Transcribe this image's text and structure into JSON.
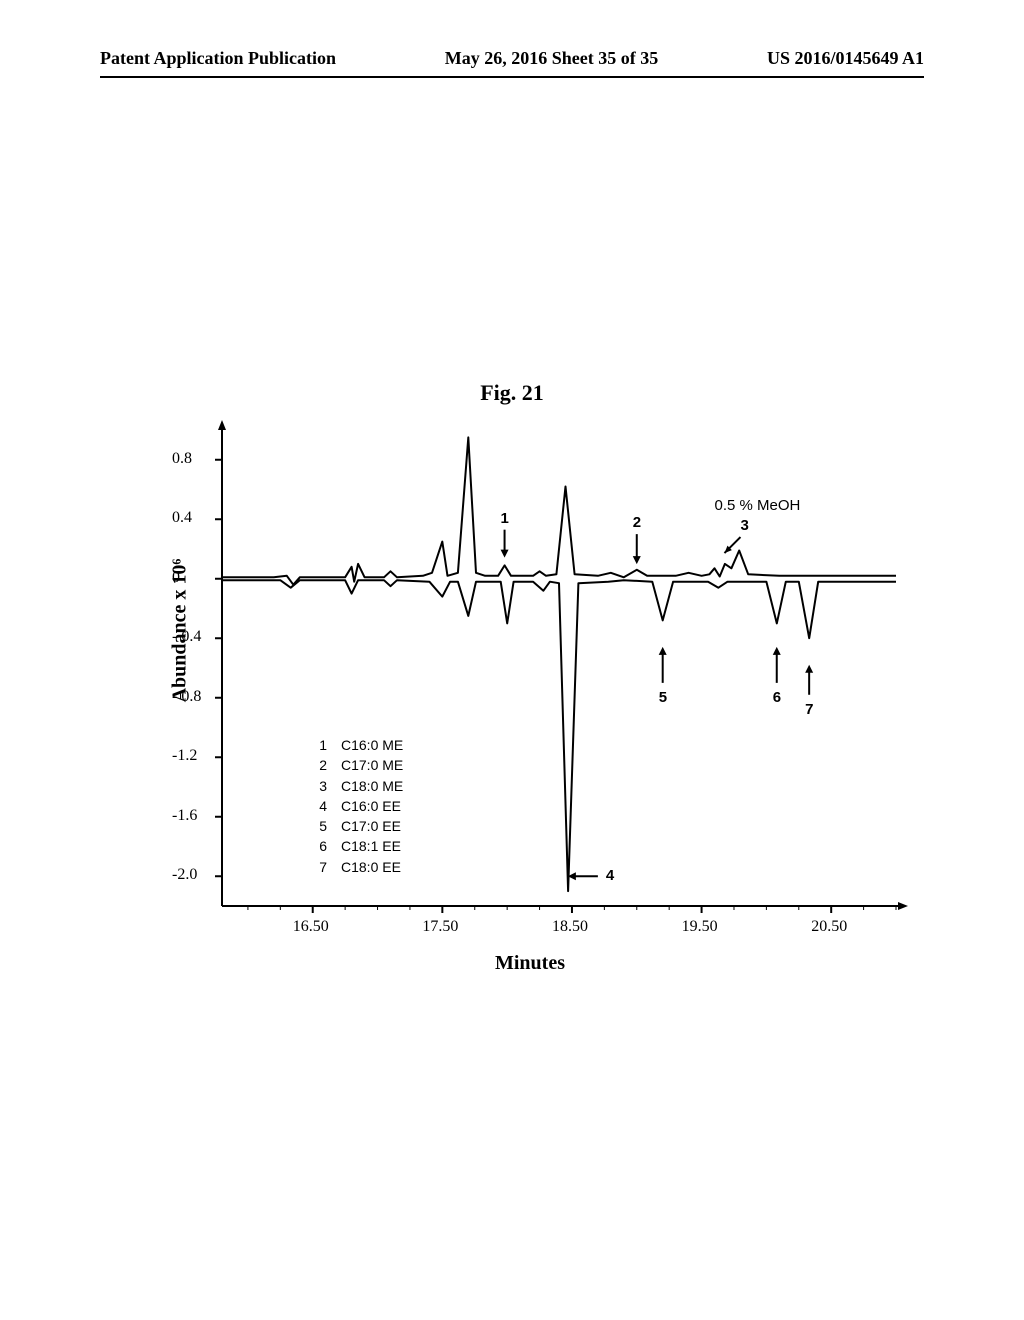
{
  "header": {
    "left": "Patent Application Publication",
    "center": "May 26, 2016  Sheet 35 of 35",
    "right": "US 2016/0145649 A1"
  },
  "figure": {
    "title": "Fig. 21",
    "y_axis_label": "Abundance x 10⁶",
    "x_axis_label": "Minutes",
    "condition_label": "0.5 % MeOH",
    "y_ticks": [
      "0.8",
      "0.4",
      "0",
      "- 0.4",
      "- 0.8",
      "-1.2",
      "-1.6",
      "-2.0"
    ],
    "y_tick_values": [
      0.8,
      0.4,
      0.0,
      -0.4,
      -0.8,
      -1.2,
      -1.6,
      -2.0
    ],
    "x_ticks": [
      "16.50",
      "17.50",
      "18.50",
      "19.50",
      "20.50"
    ],
    "x_tick_values": [
      16.5,
      17.5,
      18.5,
      19.5,
      20.5
    ],
    "xlim": [
      15.8,
      21.0
    ],
    "ylim": [
      -2.2,
      1.0
    ],
    "line_color": "#000000",
    "line_width": 2,
    "background_color": "#ffffff",
    "legend": [
      {
        "num": "1",
        "label": "C16:0 ME"
      },
      {
        "num": "2",
        "label": "C17:0 ME"
      },
      {
        "num": "3",
        "label": "C18:0 ME"
      },
      {
        "num": "4",
        "label": "C16:0 EE"
      },
      {
        "num": "5",
        "label": "C17:0 EE"
      },
      {
        "num": "6",
        "label": "C18:1 EE"
      },
      {
        "num": "7",
        "label": "C18:0 EE"
      }
    ],
    "annotations": {
      "1": "1",
      "2": "2",
      "3": "3",
      "4": "4",
      "5": "5",
      "6": "6",
      "7": "7"
    },
    "upper_trace": [
      [
        15.8,
        0.01
      ],
      [
        16.2,
        0.01
      ],
      [
        16.3,
        0.02
      ],
      [
        16.35,
        -0.04
      ],
      [
        16.4,
        0.01
      ],
      [
        16.75,
        0.01
      ],
      [
        16.8,
        0.08
      ],
      [
        16.82,
        -0.02
      ],
      [
        16.85,
        0.1
      ],
      [
        16.9,
        0.01
      ],
      [
        17.05,
        0.01
      ],
      [
        17.1,
        0.05
      ],
      [
        17.15,
        0.01
      ],
      [
        17.35,
        0.02
      ],
      [
        17.42,
        0.04
      ],
      [
        17.5,
        0.25
      ],
      [
        17.54,
        0.02
      ],
      [
        17.62,
        0.04
      ],
      [
        17.7,
        0.95
      ],
      [
        17.76,
        0.04
      ],
      [
        17.83,
        0.02
      ],
      [
        17.93,
        0.02
      ],
      [
        17.98,
        0.09
      ],
      [
        18.03,
        0.02
      ],
      [
        18.2,
        0.02
      ],
      [
        18.25,
        0.05
      ],
      [
        18.3,
        0.02
      ],
      [
        18.38,
        0.03
      ],
      [
        18.45,
        0.62
      ],
      [
        18.52,
        0.03
      ],
      [
        18.7,
        0.02
      ],
      [
        18.8,
        0.04
      ],
      [
        18.9,
        0.01
      ],
      [
        19.0,
        0.06
      ],
      [
        19.08,
        0.02
      ],
      [
        19.3,
        0.02
      ],
      [
        19.4,
        0.04
      ],
      [
        19.5,
        0.02
      ],
      [
        19.56,
        0.03
      ],
      [
        19.6,
        0.07
      ],
      [
        19.64,
        0.015
      ],
      [
        19.68,
        0.1
      ],
      [
        19.73,
        0.07
      ],
      [
        19.79,
        0.19
      ],
      [
        19.86,
        0.03
      ],
      [
        20.1,
        0.02
      ],
      [
        20.4,
        0.02
      ],
      [
        20.7,
        0.02
      ],
      [
        21.0,
        0.02
      ]
    ],
    "lower_trace": [
      [
        15.8,
        -0.01
      ],
      [
        16.25,
        -0.01
      ],
      [
        16.33,
        -0.06
      ],
      [
        16.4,
        -0.01
      ],
      [
        16.75,
        -0.01
      ],
      [
        16.8,
        -0.1
      ],
      [
        16.85,
        -0.01
      ],
      [
        17.05,
        -0.01
      ],
      [
        17.1,
        -0.05
      ],
      [
        17.15,
        -0.01
      ],
      [
        17.4,
        -0.02
      ],
      [
        17.5,
        -0.12
      ],
      [
        17.56,
        -0.02
      ],
      [
        17.62,
        -0.02
      ],
      [
        17.7,
        -0.25
      ],
      [
        17.76,
        -0.02
      ],
      [
        17.95,
        -0.02
      ],
      [
        18.0,
        -0.3
      ],
      [
        18.05,
        -0.02
      ],
      [
        18.2,
        -0.02
      ],
      [
        18.28,
        -0.08
      ],
      [
        18.33,
        -0.02
      ],
      [
        18.4,
        -0.03
      ],
      [
        18.47,
        -2.1
      ],
      [
        18.55,
        -0.03
      ],
      [
        18.78,
        -0.02
      ],
      [
        18.9,
        -0.01
      ],
      [
        19.12,
        -0.02
      ],
      [
        19.2,
        -0.28
      ],
      [
        19.28,
        -0.02
      ],
      [
        19.55,
        -0.02
      ],
      [
        19.63,
        -0.06
      ],
      [
        19.7,
        -0.02
      ],
      [
        20.0,
        -0.02
      ],
      [
        20.08,
        -0.3
      ],
      [
        20.15,
        -0.02
      ],
      [
        20.25,
        -0.02
      ],
      [
        20.33,
        -0.4
      ],
      [
        20.4,
        -0.02
      ],
      [
        20.7,
        -0.02
      ],
      [
        21.0,
        -0.02
      ]
    ]
  }
}
